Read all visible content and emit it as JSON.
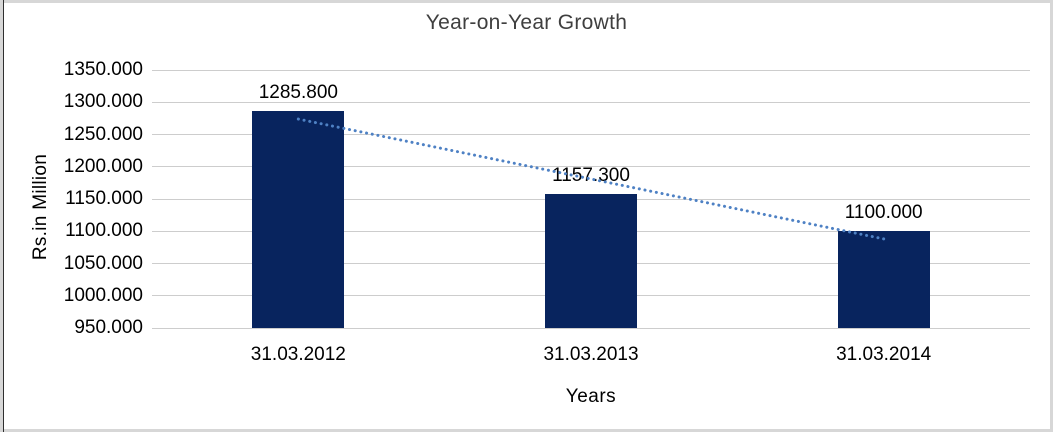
{
  "window": {
    "outer_border_color": "#d7d7d7",
    "left_edge_line_color": "#2f2f2f",
    "background": "#ffffff"
  },
  "chart_data": {
    "type": "bar",
    "title": "Year-on-Year Growth",
    "xlabel": "Years",
    "ylabel": "Rs.in Million",
    "categories": [
      "31.03.2012",
      "31.03.2013",
      "31.03.2014"
    ],
    "values": [
      1285.8,
      1157.3,
      1100.0
    ],
    "data_labels": [
      "1285.800",
      "1157.300",
      "1100.000"
    ],
    "yticks": [
      "1350.000",
      "1300.000",
      "1250.000",
      "1200.000",
      "1150.000",
      "1100.000",
      "1050.000",
      "1000.000",
      "950.000"
    ],
    "ylim": [
      950,
      1350
    ],
    "ytick_step": 50,
    "grid": true,
    "legend": "none",
    "bar_color": "#08245e",
    "gridline_color": "#cdcdcd",
    "text_color": "#000000",
    "title_color": "#3f3f3f",
    "trendline": {
      "present": true,
      "style": "dotted",
      "color": "#4e81c4",
      "fit": "linear"
    }
  }
}
